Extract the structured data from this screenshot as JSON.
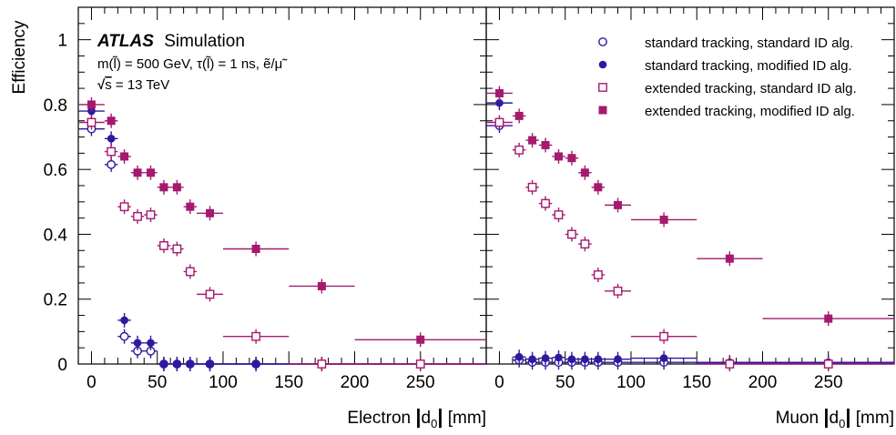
{
  "chart_data": {
    "type": "scatter",
    "ylabel": "Efficiency",
    "ylim": [
      0,
      1.1
    ],
    "yticks": [
      0,
      0.2,
      0.4,
      0.6,
      0.8,
      1
    ],
    "ytick_labels": [
      "0",
      "0.2",
      "0.4",
      "0.6",
      "0.8",
      "1"
    ],
    "xticks": [
      0,
      50,
      100,
      150,
      200,
      250
    ],
    "xtick_labels": [
      "0",
      "50",
      "100",
      "150",
      "200",
      "250"
    ],
    "annotation": {
      "experiment": "ATLAS",
      "label": "Simulation",
      "line1": "m(l̃) = 500 GeV, τ(l̃) = 1 ns,  ẽ/μ̃",
      "line2_root": "√",
      "line2_s": "s",
      "line2_rest": " = 13 TeV"
    },
    "legend": {
      "placement": "top-right",
      "entries": [
        {
          "label": "standard tracking, standard ID alg.",
          "marker": "open-circle",
          "color": "#2d1a9e"
        },
        {
          "label": "standard tracking, modified ID alg.",
          "marker": "filled-circle",
          "color": "#2d1a9e"
        },
        {
          "label": "extended tracking, standard ID alg.",
          "marker": "open-square",
          "color": "#a51a6e"
        },
        {
          "label": "extended tracking, modified ID alg.",
          "marker": "filled-square",
          "color": "#a51a6e"
        }
      ]
    },
    "panels": [
      {
        "xlabel_main": "Electron ",
        "xlabel_d": "d",
        "xlabel_sub": "0",
        "xlabel_unit": " [mm]",
        "xlim": [
          -10,
          300
        ],
        "bin_edges": [
          -10,
          10,
          20,
          30,
          40,
          50,
          60,
          70,
          80,
          100,
          150,
          200,
          300
        ],
        "series": [
          {
            "marker": "open-circle",
            "values": [
              0.725,
              0.615,
              0.085,
              0.04,
              0.04,
              0.0,
              0.0,
              0.0,
              0.0,
              0.0,
              0.0,
              0.0
            ]
          },
          {
            "marker": "filled-circle",
            "values": [
              0.78,
              0.695,
              0.135,
              0.065,
              0.065,
              0.0,
              0.0,
              0.0,
              0.0,
              0.0,
              0.0,
              0.0
            ]
          },
          {
            "marker": "open-square",
            "values": [
              0.745,
              0.655,
              0.485,
              0.455,
              0.46,
              0.365,
              0.355,
              0.285,
              0.215,
              0.085,
              0.0,
              0.0
            ]
          },
          {
            "marker": "filled-square",
            "values": [
              0.8,
              0.75,
              0.64,
              0.59,
              0.59,
              0.545,
              0.545,
              0.485,
              0.465,
              0.355,
              0.24,
              0.075
            ]
          }
        ]
      },
      {
        "xlabel_main": "Muon ",
        "xlabel_d": "d",
        "xlabel_sub": "0",
        "xlabel_unit": " [mm]",
        "xlim": [
          -10,
          300
        ],
        "bin_edges": [
          -10,
          10,
          20,
          30,
          40,
          50,
          60,
          70,
          80,
          100,
          150,
          200,
          300
        ],
        "series": [
          {
            "marker": "open-circle",
            "values": [
              0.735,
              0.012,
              0.005,
              0.005,
              0.005,
              0.005,
              0.005,
              0.005,
              0.005,
              0.005,
              0.003,
              0.003
            ]
          },
          {
            "marker": "filled-circle",
            "values": [
              0.805,
              0.022,
              0.015,
              0.018,
              0.02,
              0.015,
              0.015,
              0.015,
              0.015,
              0.018,
              0.005,
              0.005
            ]
          },
          {
            "marker": "open-square",
            "values": [
              0.745,
              0.66,
              0.545,
              0.495,
              0.46,
              0.4,
              0.37,
              0.275,
              0.225,
              0.085,
              0.0,
              0.0
            ]
          },
          {
            "marker": "filled-square",
            "values": [
              0.835,
              0.765,
              0.69,
              0.675,
              0.64,
              0.635,
              0.59,
              0.545,
              0.49,
              0.445,
              0.325,
              0.14
            ]
          }
        ]
      }
    ]
  }
}
